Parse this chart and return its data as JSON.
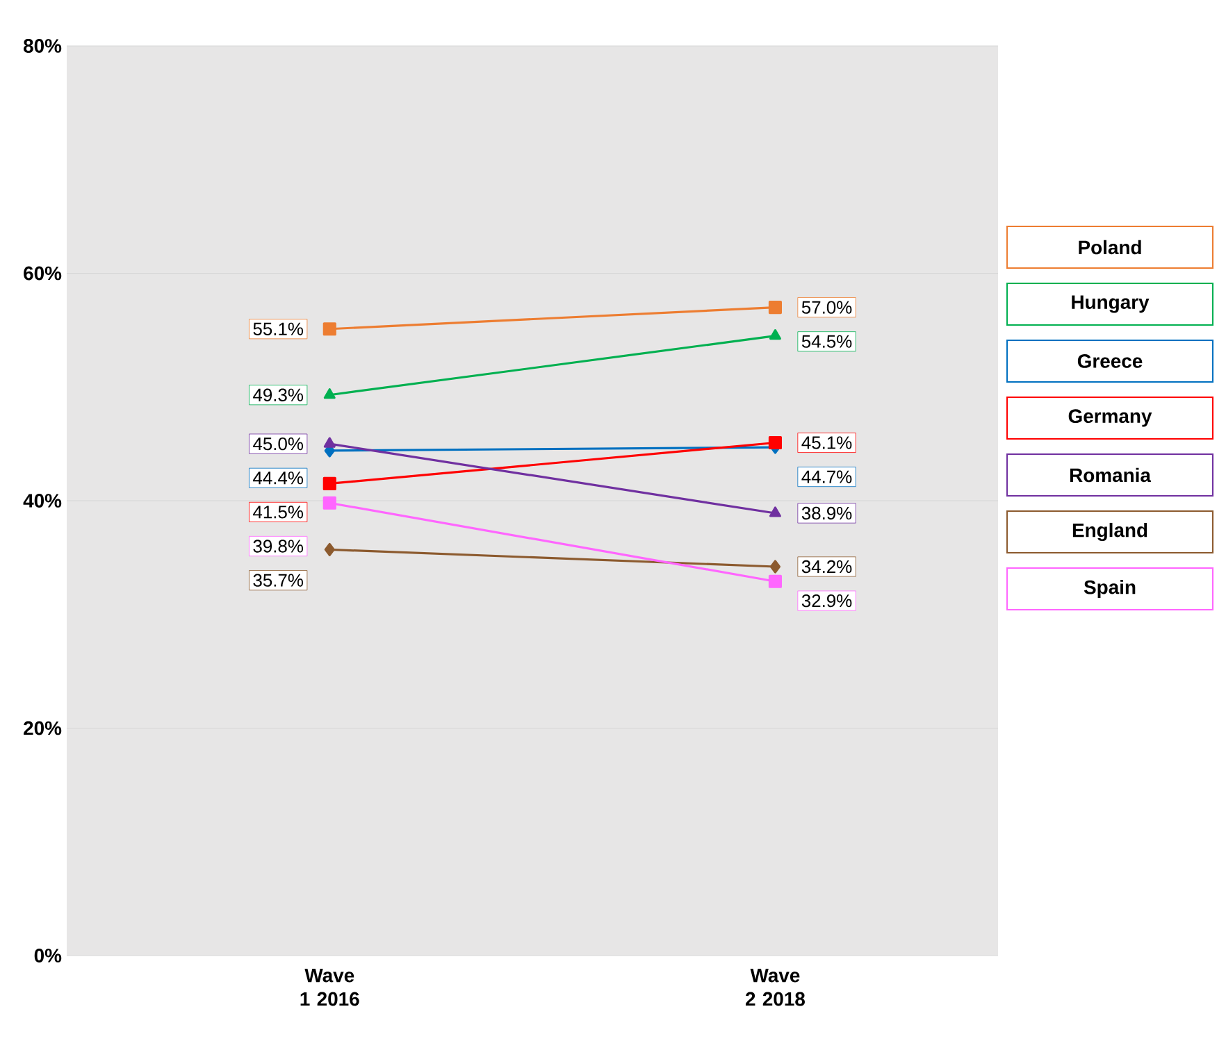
{
  "chart_data": {
    "type": "line",
    "categories": [
      "Wave 1 2016",
      "Wave 2 2018"
    ],
    "ylim": [
      0,
      80
    ],
    "yticks": [
      {
        "value": 0,
        "label": "0%"
      },
      {
        "value": 20,
        "label": "20%"
      },
      {
        "value": 40,
        "label": "40%"
      },
      {
        "value": 60,
        "label": "60%"
      },
      {
        "value": 80,
        "label": "80%"
      }
    ],
    "grid": "y",
    "legend": "right",
    "series": [
      {
        "name": "Poland",
        "color": "#ed7d31",
        "marker": "square",
        "values": [
          55.1,
          57.0
        ],
        "value_labels": [
          "55.1%",
          "57.0%"
        ]
      },
      {
        "name": "Hungary",
        "color": "#00b050",
        "marker": "triangle",
        "values": [
          49.3,
          54.5
        ],
        "value_labels": [
          "49.3%",
          "54.5%"
        ]
      },
      {
        "name": "Greece",
        "color": "#0070c0",
        "marker": "diamond",
        "values": [
          44.4,
          44.7
        ],
        "value_labels": [
          "44.4%",
          "44.7%"
        ]
      },
      {
        "name": "Germany",
        "color": "#ff0000",
        "marker": "square",
        "values": [
          41.5,
          45.1
        ],
        "value_labels": [
          "41.5%",
          "45.1%"
        ]
      },
      {
        "name": "Romania",
        "color": "#7030a0",
        "marker": "triangle",
        "values": [
          45.0,
          38.9
        ],
        "value_labels": [
          "45.0%",
          "38.9%"
        ]
      },
      {
        "name": "England",
        "color": "#8c5a2e",
        "marker": "diamond",
        "values": [
          35.7,
          34.2
        ],
        "value_labels": [
          "35.7%",
          "34.2%"
        ]
      },
      {
        "name": "Spain",
        "color": "#ff66ff",
        "marker": "square",
        "values": [
          39.8,
          32.9
        ],
        "value_labels": [
          "39.8%",
          "32.9%"
        ]
      }
    ]
  }
}
